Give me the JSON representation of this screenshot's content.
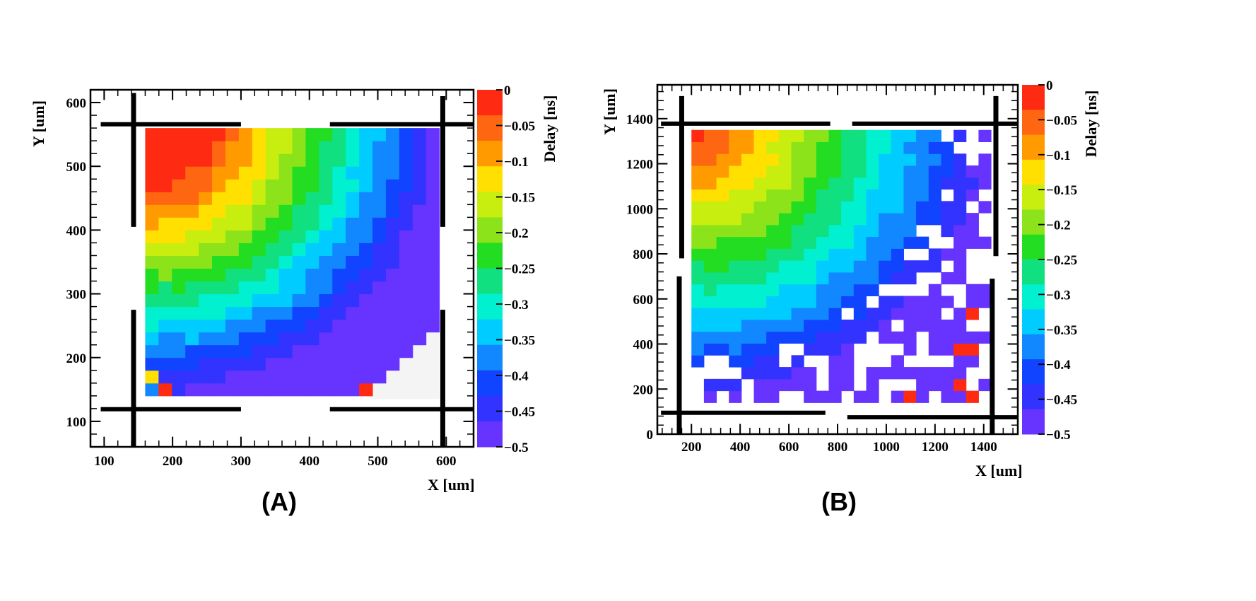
{
  "chart_data": [
    {
      "type": "heatmap",
      "panel_label": "(A)",
      "xlabel": "X [um]",
      "ylabel": "Y [um]",
      "zlabel": "Delay [ns]",
      "xlim": [
        80,
        640
      ],
      "ylim": [
        60,
        620
      ],
      "zlim": [
        -0.5,
        0
      ],
      "x_ticks": [
        100,
        200,
        300,
        400,
        500,
        600
      ],
      "x_tick_labels": [
        "100",
        "200",
        "300",
        "400",
        "500",
        "600"
      ],
      "y_ticks": [
        100,
        200,
        300,
        400,
        500,
        600
      ],
      "y_tick_labels": [
        "100",
        "200",
        "300",
        "400",
        "500",
        "600"
      ],
      "z_ticks": [
        0,
        -0.05,
        -0.1,
        -0.15,
        -0.2,
        -0.25,
        -0.3,
        -0.35,
        -0.4,
        -0.45,
        -0.5
      ],
      "z_tick_labels": [
        "0",
        "−0.05",
        "−0.1",
        "−0.15",
        "−0.2",
        "−0.25",
        "−0.3",
        "−0.35",
        "−0.4",
        "−0.45",
        "−0.5"
      ],
      "grid": false,
      "legend": "colorbar-right",
      "cells": {
        "x_range": [
          160,
          590
        ],
        "y_range": [
          140,
          560
        ],
        "nx": 22,
        "ny": 21,
        "center_x": 160,
        "center_y": 560,
        "scale_x": 430,
        "scale_y": 420,
        "edge_offset": 0.48,
        "skip_corner": {
          "x_min": 485,
          "y_max": 240,
          "diag_x": 590,
          "diag_y": 245
        },
        "anomalies": [
          {
            "x": 170,
            "y": 170,
            "value": -0.12
          },
          {
            "x": 190,
            "y": 150,
            "value": -0.02
          },
          {
            "x": 170,
            "y": 150,
            "value": -0.38
          },
          {
            "x": 490,
            "y": 150,
            "value": -0.02
          }
        ]
      },
      "detector_marks": {
        "vertical": [
          {
            "x": 143,
            "y0": 405,
            "y1": 615
          },
          {
            "x": 143,
            "y0": 60,
            "y1": 275
          },
          {
            "x": 595,
            "y0": 405,
            "y1": 610
          },
          {
            "x": 595,
            "y0": 60,
            "y1": 275
          }
        ],
        "horizontal": [
          {
            "y": 566,
            "x0": 95,
            "x1": 300
          },
          {
            "y": 566,
            "x0": 430,
            "x1": 640
          },
          {
            "y": 119,
            "x0": 95,
            "x1": 300
          },
          {
            "y": 119,
            "x0": 430,
            "x1": 640
          }
        ],
        "gray_region": {
          "x0": 490,
          "x1": 590,
          "y0": 135,
          "y1": 255
        }
      }
    },
    {
      "type": "heatmap",
      "panel_label": "(B)",
      "xlabel": "X [um]",
      "ylabel": "Y [um]",
      "zlabel": "Delay [ns]",
      "xlim": [
        60,
        1540
      ],
      "ylim": [
        0,
        1550
      ],
      "zlim": [
        -0.5,
        0
      ],
      "x_ticks": [
        200,
        400,
        600,
        800,
        1000,
        1200,
        1400
      ],
      "x_tick_labels": [
        "200",
        "400",
        "600",
        "800",
        "1000",
        "1200",
        "1400"
      ],
      "y_ticks": [
        0,
        200,
        400,
        600,
        800,
        1000,
        1200,
        1400
      ],
      "y_tick_labels": [
        "0",
        "200",
        "400",
        "600",
        "800",
        "1000",
        "1200",
        "1400"
      ],
      "z_ticks": [
        0,
        -0.05,
        -0.1,
        -0.15,
        -0.2,
        -0.25,
        -0.3,
        -0.35,
        -0.4,
        -0.45,
        -0.5
      ],
      "z_tick_labels": [
        "0",
        "−0.05",
        "−0.1",
        "−0.15",
        "−0.2",
        "−0.25",
        "−0.3",
        "−0.35",
        "−0.4",
        "−0.45",
        "−0.5"
      ],
      "grid": false,
      "legend": "colorbar-right",
      "cells": {
        "x_range": [
          200,
          1430
        ],
        "y_range": [
          140,
          1350
        ],
        "nx": 24,
        "ny": 23,
        "center_x": 200,
        "center_y": 1350,
        "scale_x": 1230,
        "scale_y": 1210,
        "edge_offset": 0.0,
        "sparse_threshold": 0.85,
        "anomalies": [
          {
            "x": 1375,
            "y": 360,
            "value": -0.02
          },
          {
            "x": 1375,
            "y": 160,
            "value": -0.02
          },
          {
            "x": 1115,
            "y": 160,
            "value": -0.02
          },
          {
            "x": 1300,
            "y": 380,
            "value": -0.02
          },
          {
            "x": 1325,
            "y": 210,
            "value": -0.02
          },
          {
            "x": 1375,
            "y": 530,
            "value": -0.02
          }
        ]
      },
      "detector_marks": {
        "vertical": [
          {
            "x": 160,
            "y0": 780,
            "y1": 1500
          },
          {
            "x": 150,
            "y0": 0,
            "y1": 700
          },
          {
            "x": 1450,
            "y0": 790,
            "y1": 1500
          },
          {
            "x": 1435,
            "y0": 0,
            "y1": 690
          }
        ],
        "horizontal": [
          {
            "y": 1378,
            "x0": 75,
            "x1": 770
          },
          {
            "y": 1378,
            "x0": 860,
            "x1": 1540
          },
          {
            "y": 95,
            "x0": 75,
            "x1": 750
          },
          {
            "y": 75,
            "x0": 840,
            "x1": 1540
          }
        ]
      }
    }
  ],
  "palette": [
    "#ff2a12",
    "#ff6611",
    "#ff9a00",
    "#ffe000",
    "#c8ee10",
    "#8ce31a",
    "#22dd22",
    "#11e080",
    "#00f0d0",
    "#00ccff",
    "#1188ff",
    "#1144ff",
    "#3333ff",
    "#6633ff"
  ]
}
